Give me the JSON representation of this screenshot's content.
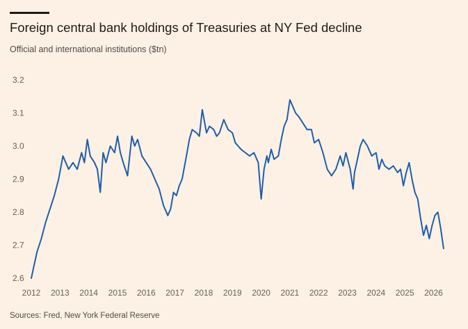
{
  "header": {
    "title": "Foreign central bank holdings of Treasuries at NY Fed decline",
    "subtitle": "Official and international institutions ($tn)"
  },
  "footer": {
    "source": "Sources: Fred, New York Federal Reserve"
  },
  "colors": {
    "line": "#1f5ea8",
    "background": "#fdf1e5"
  },
  "chart_data": {
    "type": "line",
    "title": "Foreign central bank holdings of Treasuries at NY Fed decline",
    "subtitle": "Official and international institutions ($tn)",
    "xlabel": "",
    "ylabel": "",
    "ylim": [
      2.6,
      3.2
    ],
    "xlim": [
      2012,
      2026.4
    ],
    "yticks": [
      "3.2",
      "3.1",
      "3.0",
      "2.9",
      "2.8",
      "2.7",
      "2.6"
    ],
    "xticks": [
      "2012",
      "2013",
      "2014",
      "2015",
      "2016",
      "2017",
      "2018",
      "2019",
      "2020",
      "2021",
      "2022",
      "2023",
      "2024",
      "2025",
      "2026"
    ],
    "grid": false,
    "legend": "none",
    "series": [
      {
        "x": [
          2012.0,
          2012.1,
          2012.2,
          2012.35,
          2012.5,
          2012.65,
          2012.8,
          2012.95,
          2013.1,
          2013.2,
          2013.3,
          2013.45,
          2013.6,
          2013.75,
          2013.85,
          2013.95,
          2014.05,
          2014.2,
          2014.3,
          2014.4,
          2014.5,
          2014.6,
          2014.75,
          2014.9,
          2015.0,
          2015.1,
          2015.2,
          2015.35,
          2015.5,
          2015.6,
          2015.7,
          2015.85,
          2016.0,
          2016.15,
          2016.3,
          2016.45,
          2016.6,
          2016.75,
          2016.85,
          2016.95,
          2017.05,
          2017.15,
          2017.25,
          2017.4,
          2017.5,
          2017.6,
          2017.75,
          2017.85,
          2017.95,
          2018.1,
          2018.2,
          2018.35,
          2018.45,
          2018.55,
          2018.7,
          2018.85,
          2019.0,
          2019.1,
          2019.2,
          2019.3,
          2019.45,
          2019.6,
          2019.75,
          2019.9,
          2020.0,
          2020.1,
          2020.2,
          2020.25,
          2020.35,
          2020.45,
          2020.6,
          2020.7,
          2020.8,
          2020.9,
          2021.0,
          2021.1,
          2021.2,
          2021.3,
          2021.45,
          2021.6,
          2021.75,
          2021.85,
          2022.0,
          2022.15,
          2022.3,
          2022.45,
          2022.6,
          2022.75,
          2022.85,
          2022.95,
          2023.1,
          2023.2,
          2023.25,
          2023.35,
          2023.45,
          2023.55,
          2023.7,
          2023.85,
          2024.0,
          2024.1,
          2024.2,
          2024.3,
          2024.45,
          2024.6,
          2024.75,
          2024.85,
          2024.95,
          2025.05,
          2025.15,
          2025.25,
          2025.35,
          2025.45,
          2025.55,
          2025.65,
          2025.75,
          2025.85,
          2025.95,
          2026.05,
          2026.15,
          2026.25,
          2026.35
        ],
        "values": [
          2.6,
          2.64,
          2.68,
          2.72,
          2.77,
          2.81,
          2.85,
          2.9,
          2.97,
          2.95,
          2.93,
          2.95,
          2.93,
          2.98,
          2.95,
          3.02,
          2.97,
          2.95,
          2.93,
          2.86,
          2.98,
          2.95,
          3.0,
          2.98,
          3.03,
          2.98,
          2.95,
          2.91,
          3.03,
          3.0,
          3.02,
          2.97,
          2.95,
          2.93,
          2.9,
          2.87,
          2.82,
          2.79,
          2.81,
          2.86,
          2.85,
          2.88,
          2.9,
          2.97,
          3.02,
          3.05,
          3.04,
          3.03,
          3.11,
          3.04,
          3.06,
          3.05,
          3.03,
          3.04,
          3.08,
          3.05,
          3.04,
          3.01,
          3.0,
          2.99,
          2.98,
          2.97,
          2.98,
          2.95,
          2.84,
          2.93,
          2.97,
          2.95,
          2.99,
          2.96,
          2.97,
          3.02,
          3.06,
          3.08,
          3.14,
          3.12,
          3.1,
          3.09,
          3.07,
          3.05,
          3.05,
          3.01,
          3.02,
          2.98,
          2.93,
          2.91,
          2.93,
          2.97,
          2.94,
          2.98,
          2.93,
          2.87,
          2.92,
          2.96,
          3.0,
          3.02,
          3.0,
          2.97,
          2.98,
          2.93,
          2.96,
          2.94,
          2.93,
          2.94,
          2.92,
          2.93,
          2.88,
          2.92,
          2.95,
          2.9,
          2.86,
          2.84,
          2.78,
          2.73,
          2.76,
          2.72,
          2.76,
          2.79,
          2.8,
          2.75,
          2.69
        ]
      }
    ]
  }
}
